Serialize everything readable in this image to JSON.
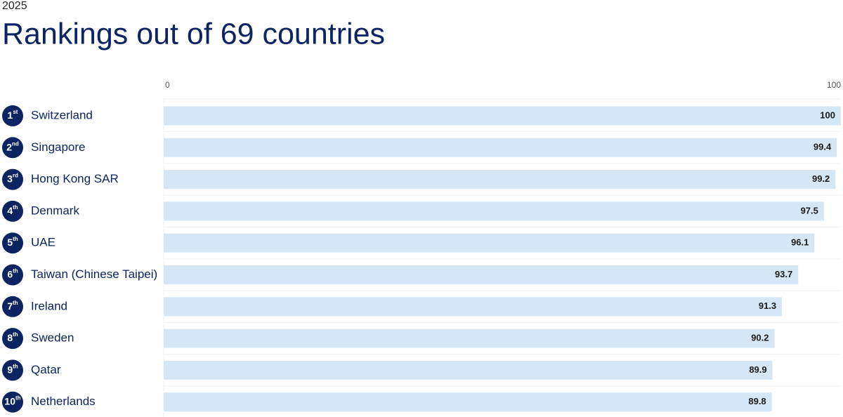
{
  "chart_data": {
    "type": "bar",
    "orientation": "horizontal",
    "subtitle": "2025",
    "title": "Rankings out of 69 countries",
    "ranks": [
      {
        "number": "1",
        "suffix": "st"
      },
      {
        "number": "2",
        "suffix": "nd"
      },
      {
        "number": "3",
        "suffix": "rd"
      },
      {
        "number": "4",
        "suffix": "th"
      },
      {
        "number": "5",
        "suffix": "th"
      },
      {
        "number": "6",
        "suffix": "th"
      },
      {
        "number": "7",
        "suffix": "th"
      },
      {
        "number": "8",
        "suffix": "th"
      },
      {
        "number": "9",
        "suffix": "th"
      },
      {
        "number": "10",
        "suffix": "th"
      }
    ],
    "categories": [
      "Switzerland",
      "Singapore",
      "Hong Kong SAR",
      "Denmark",
      "UAE",
      "Taiwan (Chinese Taipei)",
      "Ireland",
      "Sweden",
      "Qatar",
      "Netherlands"
    ],
    "values": [
      100,
      99.4,
      99.2,
      97.5,
      96.1,
      93.7,
      91.3,
      90.2,
      89.9,
      89.8
    ],
    "color": "#d5e7f5",
    "xlim": [
      0,
      100
    ],
    "xticks": [
      0,
      100
    ]
  }
}
